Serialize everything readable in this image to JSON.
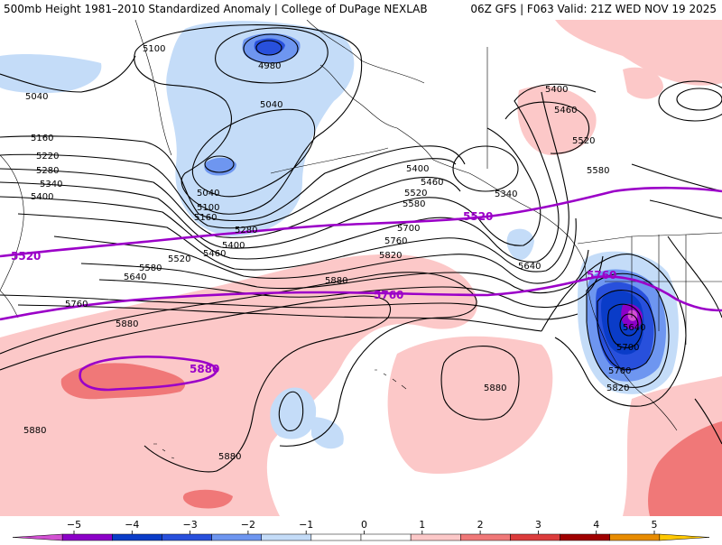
{
  "header": {
    "title_left": "500mb Height 1981–2010 Standardized Anomaly | College of DuPage NEXLAB",
    "title_right": "06Z GFS | F063 Valid: 21Z WED NOV 19 2025"
  },
  "contour_labels": {
    "h4980": "4980",
    "h5040": "5040",
    "h5100": "5100",
    "h5160": "5160",
    "h5220": "5220",
    "h5280": "5280",
    "h5340": "5340",
    "h5400": "5400",
    "h5460": "5460",
    "h5520": "5520",
    "h5580": "5580",
    "h5640": "5640",
    "h5700": "5700",
    "h5760": "5760",
    "h5820": "5820",
    "h5880": "5880"
  },
  "purple_labels": {
    "p5520": "5520",
    "p5760": "5760",
    "p5880": "5880"
  },
  "legend": {
    "ticks": [
      "−5",
      "−4",
      "−3",
      "−2",
      "−1",
      "0",
      "1",
      "2",
      "3",
      "4",
      "5"
    ],
    "colors": [
      "#d250d2",
      "#8c00c8",
      "#0a3cc8",
      "#2850dc",
      "#6e96f0",
      "#c4dcf8",
      "#ffffff",
      "#ffffff",
      "#fcc8c8",
      "#f07878",
      "#dc3c3c",
      "#a00000",
      "#e88c00",
      "#ffc800"
    ]
  }
}
